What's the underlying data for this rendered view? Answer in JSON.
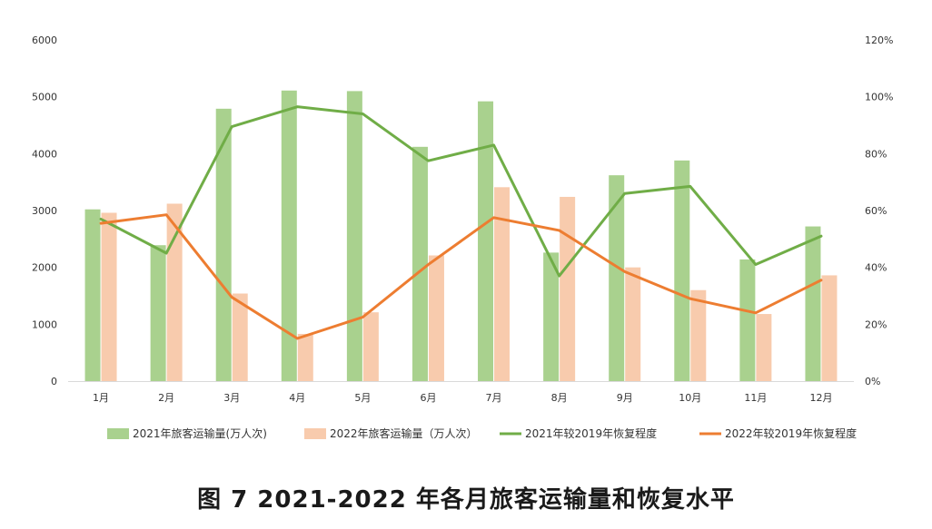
{
  "chart_data": {
    "type": "bar",
    "caption": "图 7 2021-2022 年各月旅客运输量和恢复水平",
    "categories": [
      "1月",
      "2月",
      "3月",
      "4月",
      "5月",
      "6月",
      "7月",
      "8月",
      "9月",
      "10月",
      "11月",
      "12月"
    ],
    "y_left": {
      "ylim": [
        0,
        6000
      ],
      "ticks": [
        "0",
        "1000",
        "2000",
        "3000",
        "4000",
        "5000",
        "6000"
      ]
    },
    "y_right": {
      "ylim": [
        0,
        1.2
      ],
      "ticks": [
        "0%",
        "20%",
        "40%",
        "60%",
        "80%",
        "100%",
        "120%"
      ]
    },
    "grid": false,
    "legend_position": "bottom",
    "series": [
      {
        "name": "2021年旅客运输量(万人次)",
        "type": "bar",
        "axis": "left",
        "color": "#a9d18e",
        "values": [
          3020,
          2390,
          4790,
          5110,
          5100,
          4120,
          4920,
          2260,
          3620,
          3880,
          2140,
          2720
        ]
      },
      {
        "name": "2022年旅客运输量（万人次）",
        "type": "bar",
        "axis": "left",
        "color": "#f8cbad",
        "values": [
          2960,
          3120,
          1540,
          830,
          1210,
          2210,
          3410,
          3240,
          2000,
          1600,
          1180,
          1860
        ]
      },
      {
        "name": "2021年较2019年恢复程度",
        "type": "line",
        "axis": "right",
        "color": "#70ad47",
        "values": [
          0.57,
          0.45,
          0.895,
          0.965,
          0.94,
          0.775,
          0.83,
          0.37,
          0.66,
          0.685,
          0.41,
          0.51
        ]
      },
      {
        "name": "2022年较2019年恢复程度",
        "type": "line",
        "axis": "right",
        "color": "#ed7d31",
        "values": [
          0.555,
          0.585,
          0.295,
          0.15,
          0.225,
          0.41,
          0.575,
          0.53,
          0.385,
          0.29,
          0.24,
          0.355
        ]
      }
    ]
  }
}
